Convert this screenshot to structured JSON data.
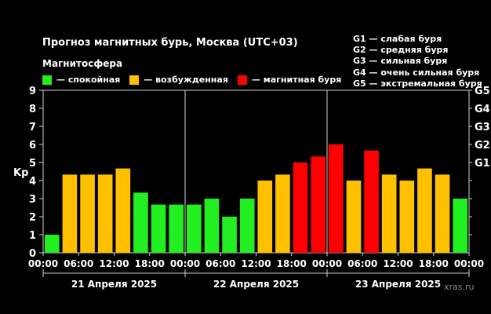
{
  "title": "Прогноз магнитных бурь, Москва (UTC+03)",
  "subtitle": "Магнитосфера",
  "legend": [
    {
      "label": "— спокойная",
      "color": "#22ee22"
    },
    {
      "label": "— возбужденная",
      "color": "#ffc000"
    },
    {
      "label": "— магнитная буря",
      "color": "#ff0000"
    }
  ],
  "g_scale": [
    "G1 — слабая буря",
    "G2 — средняя буря",
    "G3 — сильная буря",
    "G4 — очень сильная буря",
    "G5 — экстремальная буря"
  ],
  "credit": "xras.ru",
  "colors": {
    "quiet": "#22ee22",
    "active": "#ffc000",
    "storm": "#ff0000"
  },
  "chart_data": {
    "type": "bar",
    "ylabel": "Kp",
    "ylim": [
      0,
      9
    ],
    "yticks": [
      0,
      1,
      2,
      3,
      4,
      5,
      6,
      7,
      8,
      9
    ],
    "right_ticks": [
      {
        "value": 5,
        "label": "G1"
      },
      {
        "value": 6,
        "label": "G2"
      },
      {
        "value": 7,
        "label": "G3"
      },
      {
        "value": 8,
        "label": "G4"
      },
      {
        "value": 9,
        "label": "G5"
      }
    ],
    "xtick_labels": [
      "00:00",
      "06:00",
      "12:00",
      "18:00",
      "00:00",
      "06:00",
      "12:00",
      "18:00",
      "00:00",
      "06:00",
      "12:00",
      "18:00",
      "00:00"
    ],
    "days": [
      "21 Апреля 2025",
      "22 Апреля 2025",
      "23 Апреля 2025"
    ],
    "intervals_per_day": 8,
    "values": [
      1,
      4.33,
      4.33,
      4.33,
      4.67,
      3.33,
      2.67,
      2.67,
      2.67,
      3,
      2,
      3,
      4,
      4.33,
      5,
      5.33,
      6,
      4,
      5.67,
      4.33,
      4,
      4.67,
      4.33,
      3
    ],
    "levels": [
      "quiet",
      "active",
      "active",
      "active",
      "active",
      "quiet",
      "quiet",
      "quiet",
      "quiet",
      "quiet",
      "quiet",
      "quiet",
      "active",
      "active",
      "storm",
      "storm",
      "storm",
      "active",
      "storm",
      "active",
      "active",
      "active",
      "active",
      "quiet"
    ]
  }
}
